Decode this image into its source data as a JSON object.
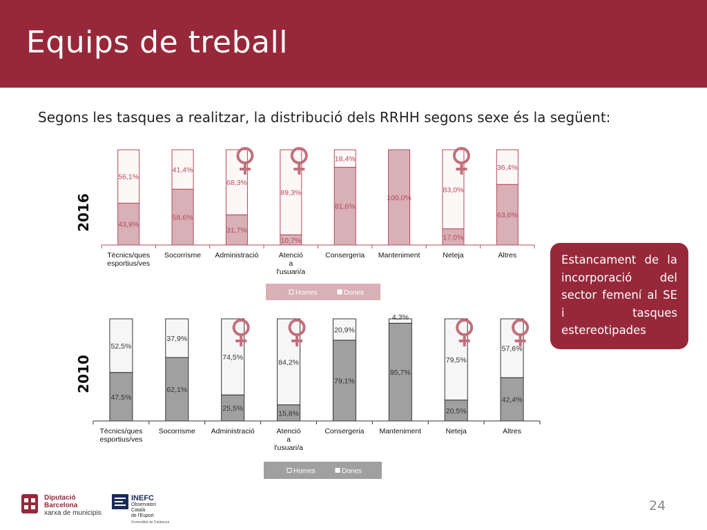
{
  "header": {
    "title": "Equips de treball"
  },
  "subtitle": "Segons les tasques a realitzar, la distribució dels RRHH segons sexe és la següent:",
  "callout": {
    "text": "Estancament de la incorporació del sector femení al SE i tasques estereotipades"
  },
  "page_number": "24",
  "logos": {
    "diputacio": {
      "line1": "Diputació",
      "line2": "Barcelona",
      "line3": "xarxa de municipis"
    },
    "inefc": {
      "line1": "INEFC",
      "line2": "Observatori",
      "line3": "Català",
      "line4": "de l'Esport",
      "line5": "Generalitat de Catalunya"
    }
  },
  "colors": {
    "brand": "#96283a",
    "homes_2016": "#d8b0b6",
    "dones_2016": "#fdf8f8",
    "edge_2016": "#b5485a",
    "homes_2010": "#a0a0a0",
    "dones_2010": "#f6f6f6",
    "edge_2010": "#333333",
    "female_symbol": "#c0707c"
  },
  "chart_data": [
    {
      "type": "bar",
      "stacked": true,
      "title": "2016",
      "categories": [
        "Tècnics/ques esportius/ves",
        "Socorrisme",
        "Administració",
        "Atenció a l'usuari/a",
        "Consergeria",
        "Manteniment",
        "Neteja",
        "Altres"
      ],
      "series": [
        {
          "name": "Homes",
          "values": [
            43.9,
            58.6,
            31.7,
            10.7,
            81.6,
            100.0,
            17.0,
            63.6
          ],
          "labels": [
            "43,9%",
            "58,6%",
            "31,7%",
            "10,7%",
            "81,6%",
            "100,0%",
            "17,0%",
            "63,6%"
          ]
        },
        {
          "name": "Dones",
          "values": [
            56.1,
            41.4,
            68.3,
            89.3,
            18.4,
            0.0,
            83.0,
            36.4
          ],
          "labels": [
            "56,1%",
            "41,4%",
            "68,3%",
            "89,3%",
            "18,4%",
            "",
            "83,0%",
            "36,4%"
          ]
        }
      ],
      "female_symbol_categories": [
        "Administració",
        "Atenció a l'usuari/a",
        "Neteja"
      ],
      "ylim": [
        0,
        100
      ],
      "legend": "bottom",
      "grid": false
    },
    {
      "type": "bar",
      "stacked": true,
      "title": "2010",
      "categories": [
        "Tècnics/ques esportius/ves",
        "Socorrisme",
        "Administració",
        "Atenció a l'usuari/a",
        "Consergeria",
        "Manteniment",
        "Neteja",
        "Altres"
      ],
      "series": [
        {
          "name": "Homes",
          "values": [
            47.5,
            62.1,
            25.5,
            15.8,
            79.1,
            95.7,
            20.5,
            42.4
          ],
          "labels": [
            "47,5%",
            "62,1%",
            "25,5%",
            "15,8%",
            "79,1%",
            "95,7%",
            "20,5%",
            "42,4%"
          ]
        },
        {
          "name": "Dones",
          "values": [
            52.5,
            37.9,
            74.5,
            84.2,
            20.9,
            4.3,
            79.5,
            57.6
          ],
          "labels": [
            "52,5%",
            "37,9%",
            "74,5%",
            "84,2%",
            "20,9%",
            "4,3%",
            "79,5%",
            "57,6%"
          ]
        }
      ],
      "female_symbol_categories": [
        "Administració",
        "Atenció a l'usuari/a",
        "Neteja",
        "Altres"
      ],
      "ylim": [
        0,
        100
      ],
      "legend": "bottom",
      "grid": false
    }
  ]
}
